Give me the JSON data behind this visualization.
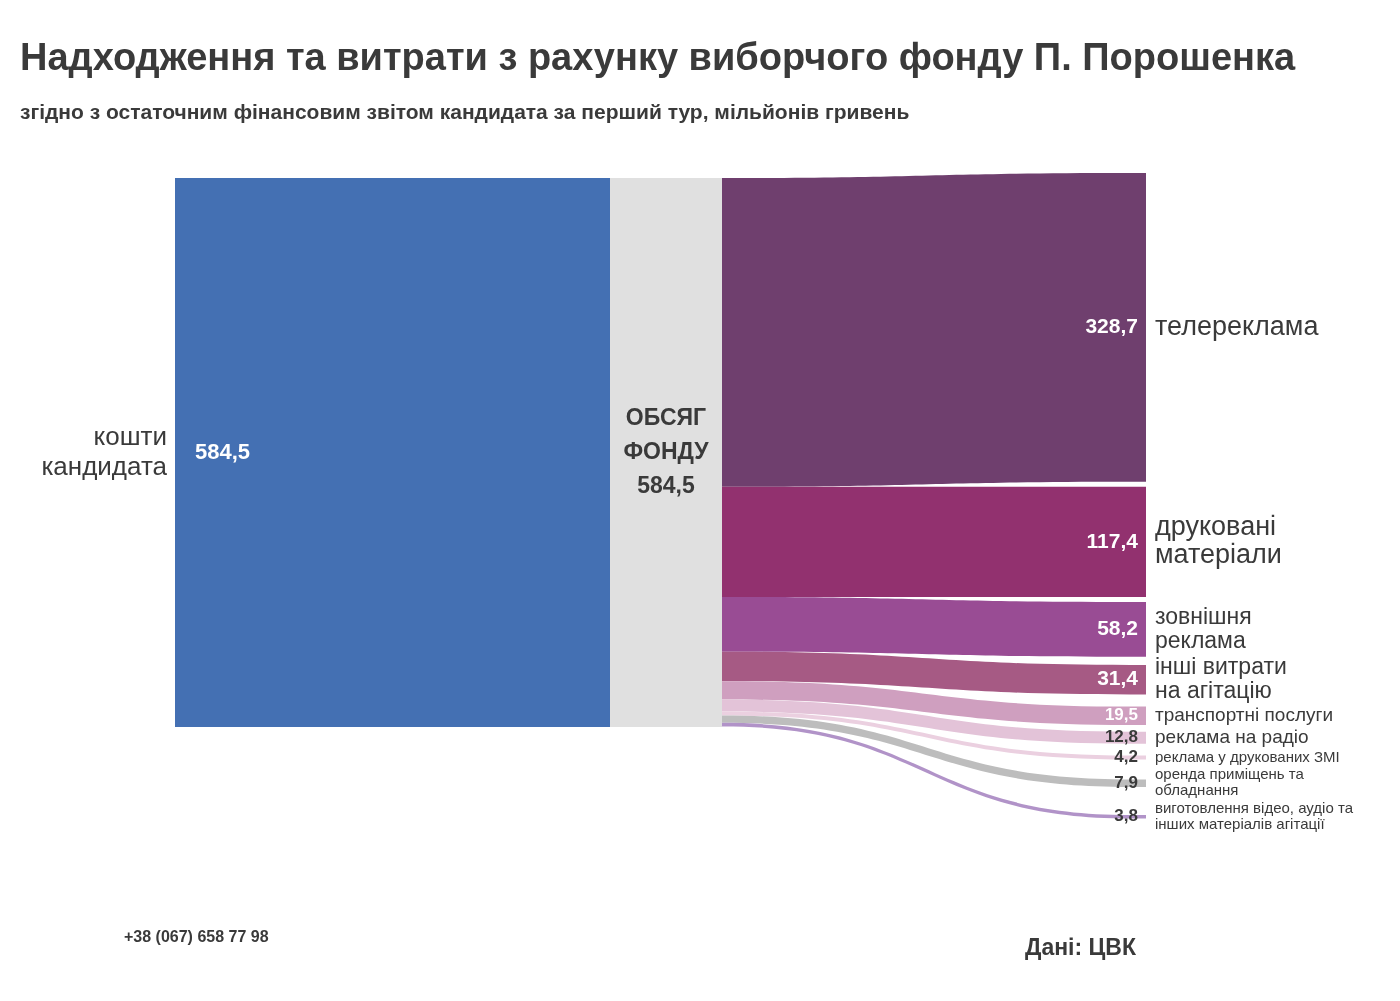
{
  "chart_data": {
    "type": "other",
    "title": "Надходження та витрати з рахунку виборчого фонду П. Порошенка",
    "subtitle": "згідно з остаточним фінансовим звітом кандидата за перший тур, мільйонів гривень",
    "categories": [
      "кошти кандидата",
      "ОБСЯГ ФОНДУ",
      "телереклама",
      "друковані матеріали",
      "зовнішня реклама",
      "інші витрати на агітацію",
      "транспортні послуги",
      "реклама на радіо",
      "реклама у друкованих ЗМІ",
      "оренда приміщень та обладнання",
      "виготовлення відео, аудіо та інших матеріалів агітації"
    ],
    "values": [
      584.5,
      584.5,
      328.7,
      117.4,
      58.2,
      31.4,
      19.5,
      12.8,
      4.2,
      7.9,
      3.8
    ],
    "colors": [
      "#4470b3",
      "#e0e0e0",
      "#6f3f6e",
      "#92316f",
      "#994c94",
      "#a65a84",
      "#cf9fbf",
      "#e3c3d8",
      "#ebd0e0",
      "#bdbdbd",
      "#b193c8"
    ],
    "value_labels": [
      "584,5",
      "584,5",
      "328,7",
      "117,4",
      "58,2",
      "31,4",
      "19,5",
      "12,8",
      "4,2",
      "7,9",
      "3,8"
    ],
    "annotations": [
      "+38 (067) 658 77 98",
      "Дані: ЦВК"
    ]
  }
}
